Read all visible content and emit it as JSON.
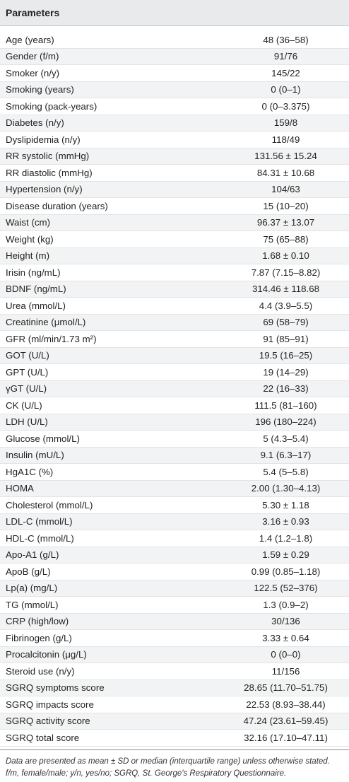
{
  "table": {
    "header": "Parameters",
    "rows": [
      {
        "param": "Age (years)",
        "value": "48 (36–58)"
      },
      {
        "param": "Gender (f/m)",
        "value": "91/76"
      },
      {
        "param": "Smoker (n/y)",
        "value": "145/22"
      },
      {
        "param": "Smoking (years)",
        "value": "0 (0–1)"
      },
      {
        "param": "Smoking (pack-years)",
        "value": "0 (0–3.375)"
      },
      {
        "param": "Diabetes (n/y)",
        "value": "159/8"
      },
      {
        "param": "Dyslipidemia (n/y)",
        "value": "118/49"
      },
      {
        "param": "RR systolic (mmHg)",
        "value": "131.56 ± 15.24"
      },
      {
        "param": "RR diastolic (mmHg)",
        "value": "84.31 ± 10.68"
      },
      {
        "param": "Hypertension (n/y)",
        "value": "104/63"
      },
      {
        "param": "Disease duration (years)",
        "value": "15 (10–20)"
      },
      {
        "param": "Waist (cm)",
        "value": "96.37 ± 13.07"
      },
      {
        "param": "Weight (kg)",
        "value": "75 (65–88)"
      },
      {
        "param": "Height (m)",
        "value": "1.68 ± 0.10"
      },
      {
        "param": "Irisin (ng/mL)",
        "value": "7.87 (7.15–8.82)"
      },
      {
        "param": "BDNF (ng/mL)",
        "value": "314.46 ± 118.68"
      },
      {
        "param": "Urea (mmol/L)",
        "value": "4.4 (3.9–5.5)"
      },
      {
        "param": "Creatinine (μmol/L)",
        "value": "69 (58–79)"
      },
      {
        "param": "GFR (ml/min/1.73 m²)",
        "value": "91 (85–91)"
      },
      {
        "param": "GOT (U/L)",
        "value": "19.5 (16–25)"
      },
      {
        "param": "GPT (U/L)",
        "value": "19 (14–29)"
      },
      {
        "param": "γGT (U/L)",
        "value": "22 (16–33)"
      },
      {
        "param": "CK (U/L)",
        "value": "111.5 (81–160)"
      },
      {
        "param": "LDH (U/L)",
        "value": "196 (180–224)"
      },
      {
        "param": "Glucose (mmol/L)",
        "value": "5 (4.3–5.4)"
      },
      {
        "param": "Insulin (mU/L)",
        "value": "9.1 (6.3–17)"
      },
      {
        "param": "HgA1C (%)",
        "value": "5.4 (5–5.8)"
      },
      {
        "param": "HOMA",
        "value": "2.00 (1.30–4.13)"
      },
      {
        "param": "Cholesterol (mmol/L)",
        "value": "5.30 ± 1.18"
      },
      {
        "param": "LDL-C (mmol/L)",
        "value": "3.16 ± 0.93"
      },
      {
        "param": "HDL-C (mmol/L)",
        "value": "1.4 (1.2–1.8)"
      },
      {
        "param": "Apo-A1 (g/L)",
        "value": "1.59 ± 0.29"
      },
      {
        "param": "ApoB (g/L)",
        "value": "0.99 (0.85–1.18)"
      },
      {
        "param": "Lp(a) (mg/L)",
        "value": "122.5 (52–376)"
      },
      {
        "param": "TG (mmol/L)",
        "value": "1.3 (0.9–2)"
      },
      {
        "param": "CRP (high/low)",
        "value": "30/136"
      },
      {
        "param": "Fibrinogen (g/L)",
        "value": "3.33 ± 0.64"
      },
      {
        "param": "Procalcitonin (μg/L)",
        "value": "0 (0–0)"
      },
      {
        "param": "Steroid use (n/y)",
        "value": "11/156"
      },
      {
        "param": "SGRQ symptoms score",
        "value": "28.65 (11.70–51.75)"
      },
      {
        "param": "SGRQ impacts score",
        "value": "22.53 (8.93–38.44)"
      },
      {
        "param": "SGRQ activity score",
        "value": "47.24 (23.61–59.45)"
      },
      {
        "param": "SGRQ total score",
        "value": "32.16 (17.10–47.11)"
      }
    ]
  },
  "footnote": {
    "line1": "Data are presented as mean ± SD or median (interquartile range) unless otherwise stated.",
    "line2": "f/m, female/male; y/n, yes/no; SGRQ, St. George's Respiratory Questionnaire."
  }
}
